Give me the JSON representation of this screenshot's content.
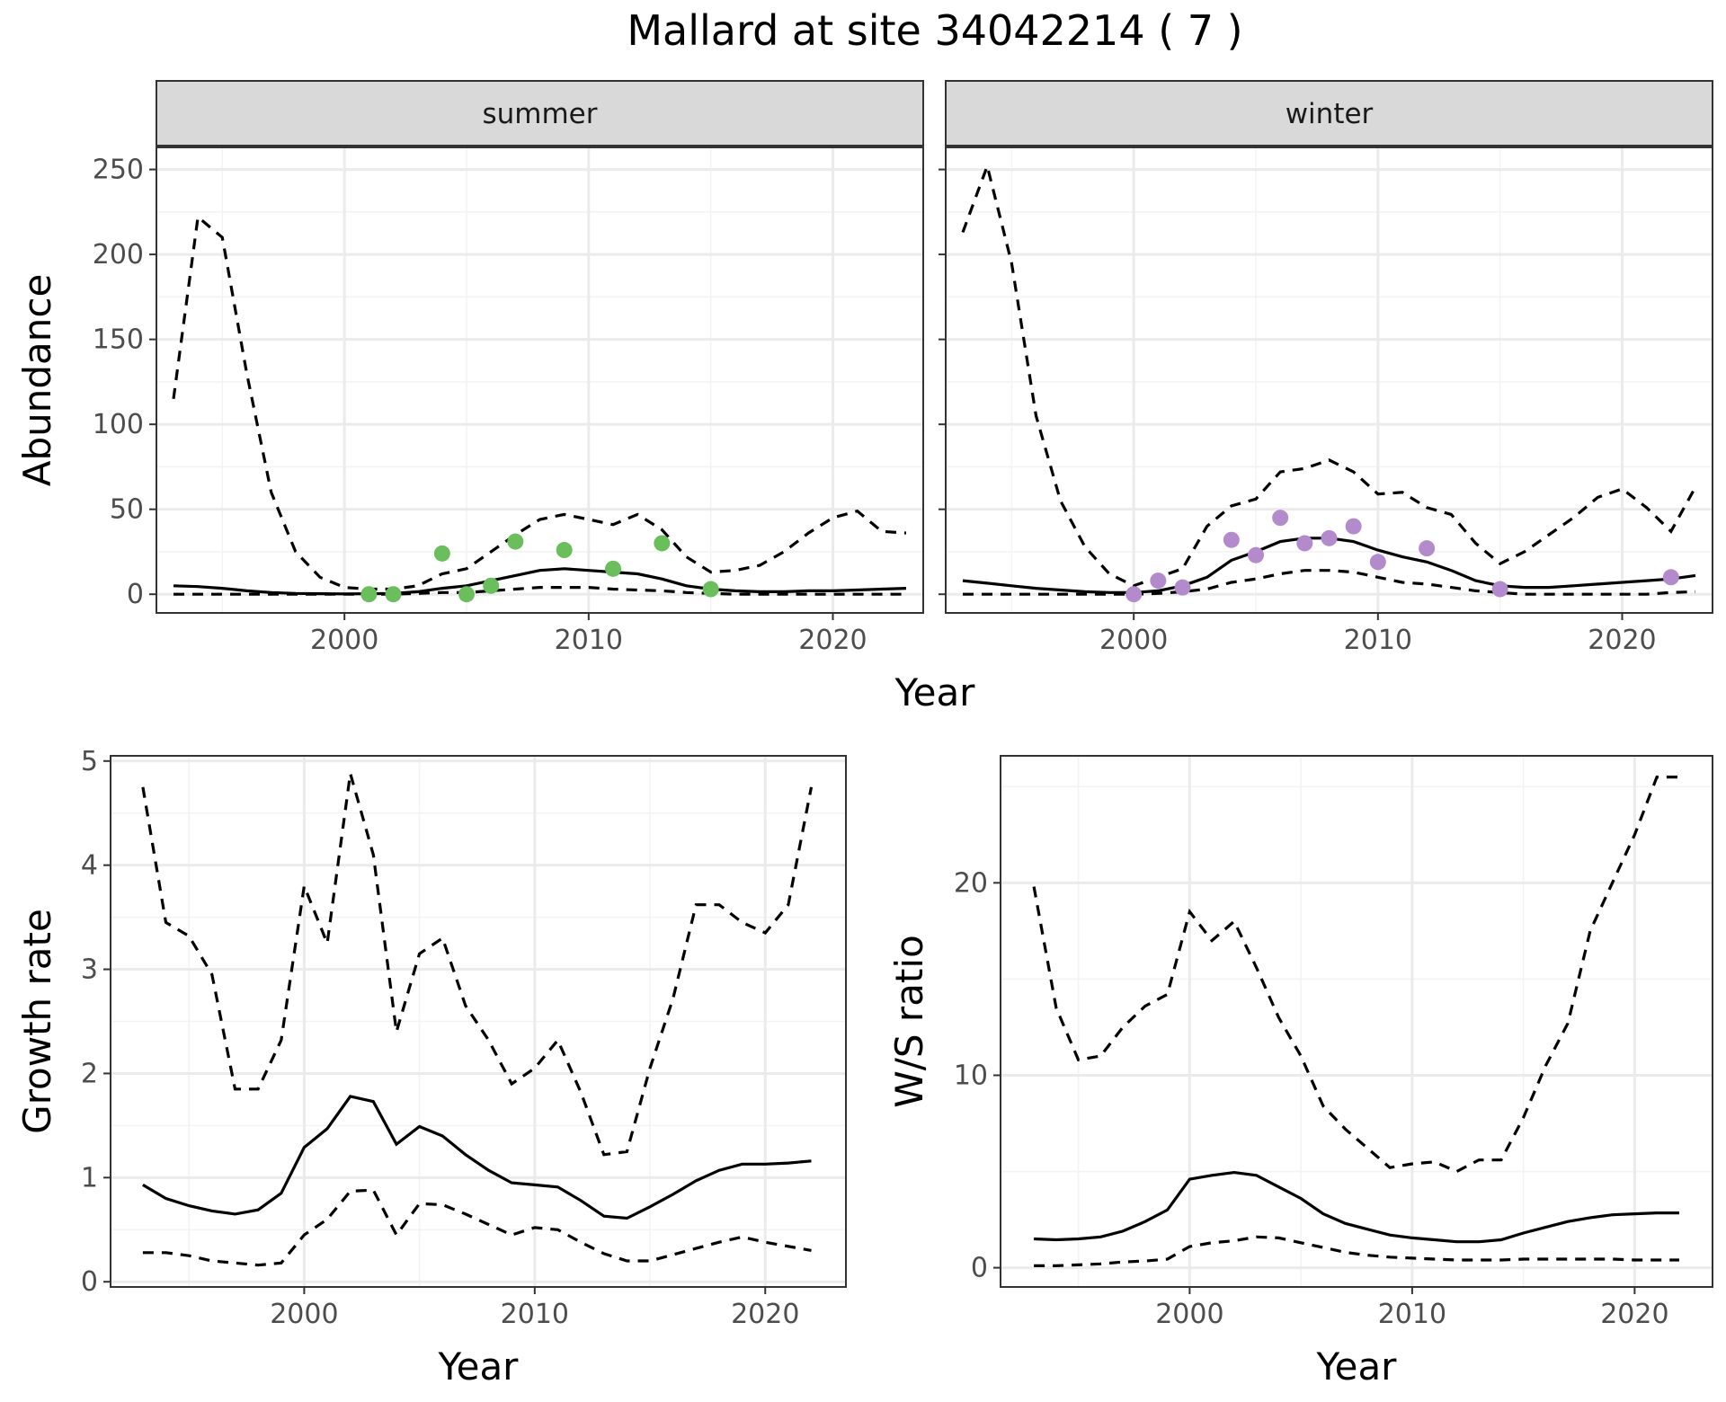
{
  "figure": {
    "title": "Mallard at site 34042214 ( 7 )"
  },
  "chart_data": [
    {
      "id": "abundance-summer",
      "type": "line",
      "facet": "summer",
      "ylabel": "Abundance",
      "xlabel": "",
      "shared_xlabel": "Year",
      "xlim": [
        1992.3,
        2023.7
      ],
      "ylim": [
        -11,
        263
      ],
      "xticks": [
        2000,
        2010,
        2020
      ],
      "yticks": [
        0,
        50,
        100,
        150,
        200,
        250
      ],
      "show_y_tick_labels": true,
      "point_color": "#6abe5c",
      "x": [
        1993,
        1994,
        1995,
        1996,
        1997,
        1998,
        1999,
        2000,
        2001,
        2002,
        2003,
        2004,
        2005,
        2006,
        2007,
        2008,
        2009,
        2010,
        2011,
        2012,
        2013,
        2014,
        2015,
        2016,
        2017,
        2018,
        2019,
        2020,
        2021,
        2022,
        2023
      ],
      "series": [
        {
          "role": "estimate",
          "values": [
            5,
            4.5,
            3.5,
            2,
            1,
            0.5,
            0.3,
            0.2,
            0.3,
            0.5,
            1.5,
            3.5,
            5,
            8,
            11,
            14,
            15,
            14,
            13,
            12,
            9,
            5,
            3,
            2,
            1.5,
            1.5,
            2,
            2,
            2.5,
            3,
            3.5
          ]
        },
        {
          "role": "upper",
          "values": [
            115,
            222,
            210,
            130,
            60,
            25,
            10,
            4,
            3,
            3,
            5,
            12,
            15,
            25,
            35,
            44,
            47,
            44,
            41,
            47,
            38,
            22,
            13,
            14,
            17,
            25,
            36,
            45,
            49,
            37,
            36
          ]
        },
        {
          "role": "lower",
          "values": [
            0,
            0,
            0,
            0,
            0,
            0,
            0,
            0,
            0,
            0,
            0.5,
            1,
            1,
            2,
            3,
            4,
            4,
            4,
            3,
            2.5,
            2,
            1,
            0.5,
            0,
            0,
            0,
            0,
            0,
            0,
            0,
            0
          ]
        }
      ],
      "points": [
        {
          "x": 2001,
          "y": 0
        },
        {
          "x": 2002,
          "y": 0
        },
        {
          "x": 2004,
          "y": 24
        },
        {
          "x": 2005,
          "y": 0
        },
        {
          "x": 2006,
          "y": 5
        },
        {
          "x": 2007,
          "y": 31
        },
        {
          "x": 2009,
          "y": 26
        },
        {
          "x": 2011,
          "y": 15
        },
        {
          "x": 2013,
          "y": 30
        },
        {
          "x": 2015,
          "y": 3
        }
      ]
    },
    {
      "id": "abundance-winter",
      "type": "line",
      "facet": "winter",
      "ylabel": "",
      "xlabel": "",
      "xlim": [
        1992.3,
        2023.7
      ],
      "ylim": [
        -11,
        263
      ],
      "xticks": [
        2000,
        2010,
        2020
      ],
      "yticks": [
        0,
        50,
        100,
        150,
        200,
        250
      ],
      "show_y_tick_labels": false,
      "point_color": "#b38acb",
      "x": [
        1993,
        1994,
        1995,
        1996,
        1997,
        1998,
        1999,
        2000,
        2001,
        2002,
        2003,
        2004,
        2005,
        2006,
        2007,
        2008,
        2009,
        2010,
        2011,
        2012,
        2013,
        2014,
        2015,
        2016,
        2017,
        2018,
        2019,
        2020,
        2021,
        2022,
        2023
      ],
      "series": [
        {
          "role": "estimate",
          "values": [
            8,
            6.5,
            5,
            3.5,
            2.5,
            1.5,
            1,
            1,
            2,
            5,
            10,
            20,
            25,
            31,
            33,
            33,
            31,
            26,
            22,
            19,
            14,
            8,
            5,
            4,
            4,
            5,
            6,
            7,
            8,
            9,
            11
          ]
        },
        {
          "role": "upper",
          "values": [
            213,
            252,
            195,
            105,
            55,
            28,
            12,
            5,
            10,
            15,
            40,
            52,
            56,
            72,
            74,
            79,
            72,
            59,
            60,
            51,
            47,
            30,
            18,
            25,
            35,
            45,
            57,
            62,
            51,
            37,
            63
          ]
        },
        {
          "role": "lower",
          "values": [
            0,
            0,
            0,
            0,
            0,
            0,
            0,
            0,
            0.5,
            1.5,
            3,
            7,
            9,
            12,
            14,
            14,
            13,
            10,
            7,
            6,
            4,
            2,
            1,
            0,
            0,
            0,
            0,
            0,
            0,
            1,
            1.5
          ]
        }
      ],
      "points": [
        {
          "x": 2000,
          "y": 0
        },
        {
          "x": 2001,
          "y": 8
        },
        {
          "x": 2002,
          "y": 4
        },
        {
          "x": 2004,
          "y": 32
        },
        {
          "x": 2005,
          "y": 23
        },
        {
          "x": 2006,
          "y": 45
        },
        {
          "x": 2007,
          "y": 30
        },
        {
          "x": 2008,
          "y": 33
        },
        {
          "x": 2009,
          "y": 40
        },
        {
          "x": 2010,
          "y": 19
        },
        {
          "x": 2012,
          "y": 27
        },
        {
          "x": 2015,
          "y": 3
        },
        {
          "x": 2022,
          "y": 10
        }
      ]
    },
    {
      "id": "growth-rate",
      "type": "line",
      "facet": "",
      "ylabel": "Growth rate",
      "xlabel": "Year",
      "xlim": [
        1991.6,
        2023.5
      ],
      "ylim": [
        -0.05,
        5.05
      ],
      "xticks": [
        2000,
        2010,
        2020
      ],
      "yticks": [
        0,
        1,
        2,
        3,
        4,
        5
      ],
      "show_y_tick_labels": true,
      "x": [
        1993,
        1994,
        1995,
        1996,
        1997,
        1998,
        1999,
        2000,
        2001,
        2002,
        2003,
        2004,
        2005,
        2006,
        2007,
        2008,
        2009,
        2010,
        2011,
        2012,
        2013,
        2014,
        2015,
        2016,
        2017,
        2018,
        2019,
        2020,
        2021,
        2022
      ],
      "series": [
        {
          "role": "estimate",
          "values": [
            0.93,
            0.8,
            0.73,
            0.68,
            0.65,
            0.69,
            0.85,
            1.29,
            1.47,
            1.78,
            1.73,
            1.32,
            1.49,
            1.4,
            1.22,
            1.07,
            0.95,
            0.93,
            0.91,
            0.78,
            0.63,
            0.61,
            0.72,
            0.84,
            0.97,
            1.07,
            1.13,
            1.13,
            1.14,
            1.16
          ]
        },
        {
          "role": "upper",
          "values": [
            4.75,
            3.45,
            3.32,
            2.95,
            1.85,
            1.85,
            2.32,
            3.8,
            3.25,
            4.88,
            4.1,
            2.4,
            3.15,
            3.3,
            2.65,
            2.32,
            1.9,
            2.05,
            2.32,
            1.82,
            1.22,
            1.25,
            2.05,
            2.72,
            3.62,
            3.62,
            3.45,
            3.35,
            3.62,
            4.75
          ]
        },
        {
          "role": "lower",
          "values": [
            0.28,
            0.28,
            0.25,
            0.2,
            0.18,
            0.16,
            0.18,
            0.45,
            0.6,
            0.87,
            0.88,
            0.45,
            0.75,
            0.74,
            0.65,
            0.55,
            0.45,
            0.52,
            0.5,
            0.38,
            0.27,
            0.2,
            0.2,
            0.26,
            0.32,
            0.38,
            0.43,
            0.38,
            0.34,
            0.3
          ]
        }
      ]
    },
    {
      "id": "ws-ratio",
      "type": "line",
      "facet": "",
      "ylabel": "W/S ratio",
      "xlabel": "Year",
      "xlim": [
        1991.5,
        2023.5
      ],
      "ylim": [
        -1,
        26.6
      ],
      "xticks": [
        2000,
        2010,
        2020
      ],
      "yticks": [
        0,
        10,
        20
      ],
      "show_y_tick_labels": true,
      "x": [
        1993,
        1994,
        1995,
        1996,
        1997,
        1998,
        1999,
        2000,
        2001,
        2002,
        2003,
        2004,
        2005,
        2006,
        2007,
        2008,
        2009,
        2010,
        2011,
        2012,
        2013,
        2014,
        2015,
        2016,
        2017,
        2018,
        2019,
        2020,
        2021,
        2022
      ],
      "series": [
        {
          "role": "estimate",
          "values": [
            1.5,
            1.45,
            1.5,
            1.6,
            1.9,
            2.4,
            3,
            4.6,
            4.8,
            4.95,
            4.8,
            4.2,
            3.6,
            2.8,
            2.3,
            2,
            1.7,
            1.55,
            1.45,
            1.35,
            1.35,
            1.45,
            1.8,
            2.1,
            2.4,
            2.6,
            2.75,
            2.8,
            2.85,
            2.85
          ]
        },
        {
          "role": "upper",
          "values": [
            19.8,
            13.5,
            10.8,
            11,
            12.5,
            13.6,
            14.2,
            18.5,
            17,
            18,
            15.6,
            13,
            11,
            8.4,
            7.2,
            6.2,
            5.2,
            5.4,
            5.5,
            5,
            5.6,
            5.6,
            7.8,
            10.5,
            12.7,
            17.5,
            20,
            22.5,
            25.5,
            25.5
          ]
        },
        {
          "role": "lower",
          "values": [
            0.1,
            0.1,
            0.15,
            0.2,
            0.3,
            0.35,
            0.45,
            1.1,
            1.3,
            1.4,
            1.6,
            1.55,
            1.3,
            1.05,
            0.8,
            0.65,
            0.55,
            0.5,
            0.45,
            0.4,
            0.4,
            0.4,
            0.45,
            0.45,
            0.45,
            0.45,
            0.45,
            0.4,
            0.4,
            0.4
          ]
        }
      ]
    }
  ]
}
